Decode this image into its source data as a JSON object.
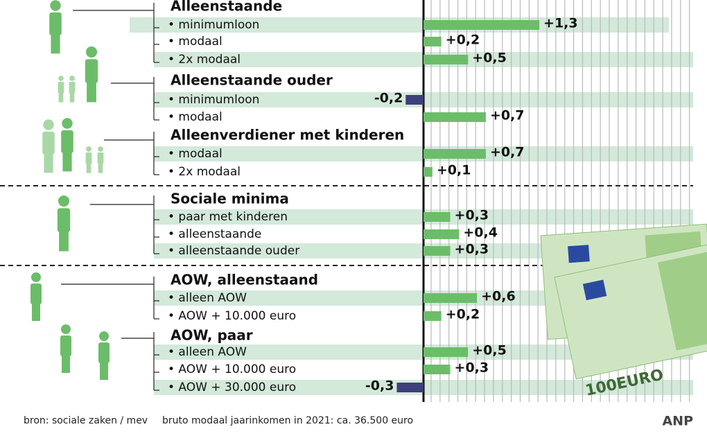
{
  "chart_data": {
    "type": "bar",
    "groups": [
      {
        "title": "Alleenstaande",
        "categories": [
          "• minimumloon",
          "• modaal",
          "• 2x modaal"
        ],
        "values": [
          1.3,
          0.2,
          0.5
        ],
        "value_labels": [
          "+1,3",
          "+0,2",
          "+0,5"
        ]
      },
      {
        "title": "Alleenstaande ouder",
        "categories": [
          "• minimumloon",
          "• modaal"
        ],
        "values": [
          -0.2,
          0.7
        ],
        "value_labels": [
          "-0,2",
          "+0,7"
        ]
      },
      {
        "title": "Alleenverdiener met kinderen",
        "categories": [
          "• modaal",
          "• 2x modaal"
        ],
        "values": [
          0.7,
          0.1
        ],
        "value_labels": [
          "+0,7",
          "+0,1"
        ]
      },
      {
        "title": "Sociale minima",
        "categories": [
          "• paar met kinderen",
          "• alleenstaande",
          "• alleenstaande ouder"
        ],
        "values": [
          0.3,
          0.4,
          0.3
        ],
        "value_labels": [
          "+0,3",
          "+0,4",
          "+0,3"
        ]
      },
      {
        "title": "AOW, alleenstaand",
        "categories": [
          "• alleen AOW",
          "• AOW + 10.000 euro"
        ],
        "values": [
          0.6,
          0.2
        ],
        "value_labels": [
          "+0,6",
          "+0,2"
        ]
      },
      {
        "title": "AOW, paar",
        "categories": [
          "• alleen AOW",
          "• AOW + 10.000 euro",
          "• AOW + 30.000 euro"
        ],
        "values": [
          0.5,
          0.3,
          -0.3
        ],
        "value_labels": [
          "+0,5",
          "+0,3",
          "-0,3"
        ]
      }
    ],
    "positive_color": "#6cbd6a",
    "negative_color": "#3d3f7a",
    "source": "bron: sociale zaken / mev",
    "note": "bruto modaal jaarinkomen in 2021: ca. 36.500 euro",
    "logo": "ANP",
    "banknote_text": "100EURO"
  }
}
